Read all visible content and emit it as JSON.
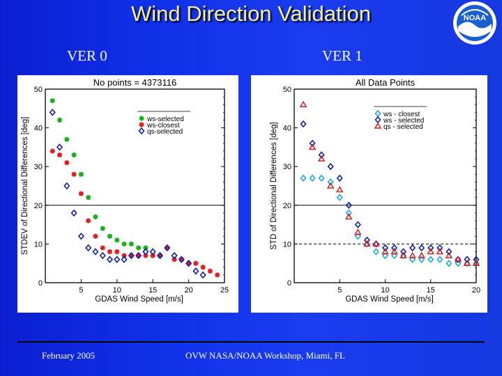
{
  "slide": {
    "title": "Wind Direction Validation",
    "ver0_label": "VER 0",
    "ver1_label": "VER 1",
    "footer_left": "February 2005",
    "footer_center": "OVW NASA/NOAA Workshop, Miami, FL",
    "logo_text": "NOAA",
    "colors": {
      "background": "#1030e8",
      "title": "#f5ee9a"
    }
  },
  "chart_data": [
    {
      "type": "scatter",
      "title": "No points = 4373116",
      "xlabel": "GDAS Wind Speed [m/s]",
      "ylabel": "STDEV of Directional Differences [deg]",
      "xlim": [
        0,
        25
      ],
      "ylim": [
        0,
        50
      ],
      "xticks": [
        "5",
        "10",
        "15",
        "20",
        "25"
      ],
      "yticks": [
        "0",
        "10",
        "20",
        "30",
        "40",
        "50"
      ],
      "hlines": [
        20
      ],
      "legend_position": "top-right",
      "series": [
        {
          "name": "ws-selected",
          "marker": "asterisk",
          "color": "#1ab01a",
          "points": [
            [
              1,
              47
            ],
            [
              2,
              42
            ],
            [
              3,
              37
            ],
            [
              4,
              33
            ],
            [
              5,
              28
            ],
            [
              6,
              22
            ],
            [
              7,
              17
            ],
            [
              8,
              14
            ],
            [
              9,
              12
            ],
            [
              10,
              11
            ],
            [
              11,
              10
            ],
            [
              12,
              10
            ],
            [
              13,
              9
            ],
            [
              14,
              9
            ],
            [
              15,
              7
            ],
            [
              16,
              7
            ]
          ]
        },
        {
          "name": "ws-closest",
          "marker": "asterisk",
          "color": "#e02020",
          "points": [
            [
              1,
              34
            ],
            [
              2,
              33
            ],
            [
              3,
              31
            ],
            [
              4,
              28
            ],
            [
              5,
              23
            ],
            [
              6,
              16
            ],
            [
              7,
              12
            ],
            [
              8,
              9
            ],
            [
              9,
              8
            ],
            [
              10,
              8
            ],
            [
              11,
              7
            ],
            [
              12,
              7
            ],
            [
              13,
              7
            ],
            [
              14,
              7
            ],
            [
              15,
              7
            ],
            [
              16,
              7
            ],
            [
              17,
              9
            ],
            [
              18,
              6
            ],
            [
              19,
              6
            ],
            [
              20,
              5
            ],
            [
              21,
              5
            ],
            [
              22,
              4
            ],
            [
              23,
              3
            ],
            [
              24,
              2
            ]
          ]
        },
        {
          "name": "qs-selected",
          "marker": "diamond",
          "color": "#1020a0",
          "points": [
            [
              1,
              44
            ],
            [
              2,
              35
            ],
            [
              3,
              25
            ],
            [
              4,
              18
            ],
            [
              5,
              12
            ],
            [
              6,
              9
            ],
            [
              7,
              8
            ],
            [
              8,
              7
            ],
            [
              9,
              6
            ],
            [
              10,
              6
            ],
            [
              11,
              6
            ],
            [
              12,
              7
            ],
            [
              13,
              7
            ],
            [
              14,
              8
            ],
            [
              15,
              8
            ],
            [
              16,
              7
            ],
            [
              17,
              9
            ],
            [
              18,
              7
            ],
            [
              19,
              6
            ],
            [
              20,
              5
            ],
            [
              21,
              3
            ],
            [
              22,
              2
            ]
          ]
        }
      ]
    },
    {
      "type": "scatter",
      "title": "All Data Points",
      "xlabel": "GDAS Wind Speed [m/s]",
      "ylabel": "STD of Directional Differences [deg]",
      "xlim": [
        0,
        20
      ],
      "ylim": [
        0,
        50
      ],
      "xticks": [
        "5",
        "10",
        "15",
        "20"
      ],
      "yticks": [
        "0",
        "10",
        "20",
        "30",
        "40",
        "50"
      ],
      "hlines": [
        20,
        10
      ],
      "legend_position": "top-right",
      "series": [
        {
          "name": "ws - closest",
          "marker": "diamond",
          "color": "#20a8e0",
          "points": [
            [
              1,
              27
            ],
            [
              2,
              27
            ],
            [
              3,
              27
            ],
            [
              4,
              26
            ],
            [
              5,
              22
            ],
            [
              6,
              18
            ],
            [
              7,
              12
            ],
            [
              8,
              10
            ],
            [
              9,
              8
            ],
            [
              10,
              7
            ],
            [
              11,
              7
            ],
            [
              12,
              7
            ],
            [
              13,
              6
            ],
            [
              14,
              6
            ],
            [
              15,
              6
            ],
            [
              16,
              6
            ],
            [
              17,
              5
            ],
            [
              18,
              5
            ],
            [
              19,
              5
            ],
            [
              20,
              5
            ]
          ]
        },
        {
          "name": "ws - selected",
          "marker": "diamond",
          "color": "#1020a0",
          "points": [
            [
              1,
              41
            ],
            [
              2,
              36
            ],
            [
              3,
              33
            ],
            [
              4,
              30
            ],
            [
              5,
              27
            ],
            [
              6,
              20
            ],
            [
              7,
              15
            ],
            [
              8,
              11
            ],
            [
              9,
              10
            ],
            [
              10,
              9
            ],
            [
              11,
              9
            ],
            [
              12,
              8
            ],
            [
              13,
              9
            ],
            [
              14,
              9
            ],
            [
              15,
              9
            ],
            [
              16,
              9
            ],
            [
              17,
              8
            ],
            [
              18,
              6
            ],
            [
              19,
              6
            ],
            [
              20,
              6
            ]
          ]
        },
        {
          "name": "qs - selected",
          "marker": "triangle",
          "color": "#d02020",
          "points": [
            [
              1,
              46
            ],
            [
              2,
              35
            ],
            [
              3,
              32
            ],
            [
              4,
              25
            ],
            [
              5,
              24
            ],
            [
              6,
              17
            ],
            [
              7,
              13
            ],
            [
              8,
              10
            ],
            [
              9,
              10
            ],
            [
              10,
              8
            ],
            [
              11,
              8
            ],
            [
              12,
              7
            ],
            [
              13,
              7
            ],
            [
              14,
              7
            ],
            [
              15,
              8
            ],
            [
              16,
              8
            ],
            [
              17,
              7
            ],
            [
              18,
              6
            ],
            [
              19,
              5
            ],
            [
              20,
              5
            ]
          ]
        }
      ]
    }
  ]
}
